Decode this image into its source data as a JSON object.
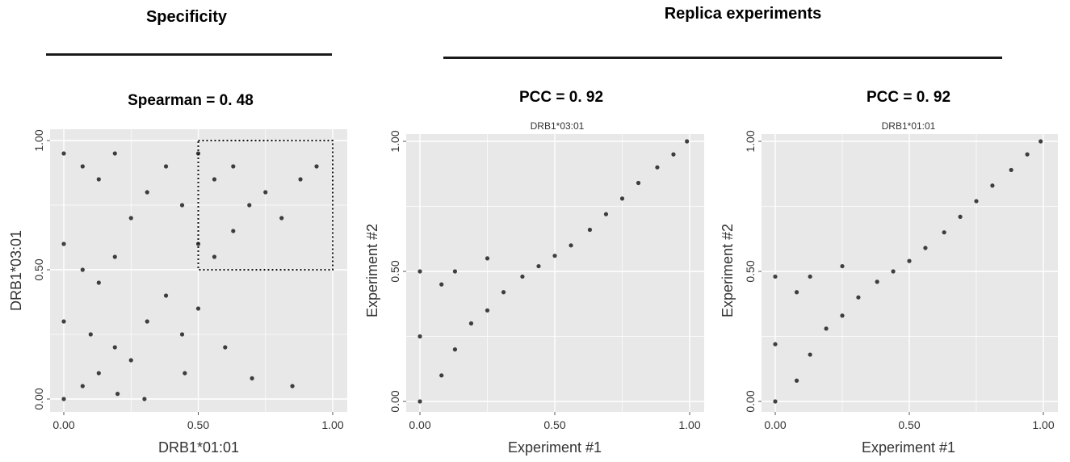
{
  "header": {
    "specificity_title": "Specificity",
    "replica_title": "Replica experiments"
  },
  "chart_data": [
    {
      "type": "scatter",
      "title": "Spearman = 0. 48",
      "subtitle": "",
      "xlabel": "DRB1*01:01",
      "ylabel": "DRB1*03:01",
      "xlim": [
        0,
        1
      ],
      "ylim": [
        0,
        1
      ],
      "xticks": [
        "0.00",
        "0.50",
        "1.00"
      ],
      "yticks": [
        "0.00",
        "0.50",
        "1.00"
      ],
      "grid": true,
      "series": [
        {
          "x": [
            0.0,
            0.0,
            0.0,
            0.0,
            0.07,
            0.07,
            0.07,
            0.13,
            0.13,
            0.13,
            0.19,
            0.19,
            0.19,
            0.25,
            0.25,
            0.31,
            0.31,
            0.38,
            0.38,
            0.44,
            0.44,
            0.5,
            0.5,
            0.56,
            0.56,
            0.63,
            0.63,
            0.69,
            0.75,
            0.81,
            0.88,
            0.94,
            0.2,
            0.45,
            0.6,
            0.7,
            0.85,
            0.1,
            0.3,
            0.5
          ],
          "y": [
            0.0,
            0.3,
            0.6,
            0.95,
            0.05,
            0.5,
            0.9,
            0.1,
            0.45,
            0.85,
            0.2,
            0.55,
            0.95,
            0.15,
            0.7,
            0.3,
            0.8,
            0.4,
            0.9,
            0.25,
            0.75,
            0.6,
            0.95,
            0.55,
            0.85,
            0.65,
            0.9,
            0.75,
            0.8,
            0.7,
            0.85,
            0.9,
            0.02,
            0.1,
            0.2,
            0.08,
            0.05,
            0.25,
            0.0,
            0.35
          ]
        }
      ],
      "highlight_box": {
        "x": [
          0.5,
          1.0
        ],
        "y": [
          0.5,
          1.0
        ]
      }
    },
    {
      "type": "scatter",
      "title": "PCC = 0. 92",
      "subtitle": "DRB1*03:01",
      "xlabel": "Experiment #1",
      "ylabel": "Experiment #2",
      "xlim": [
        0,
        1
      ],
      "ylim": [
        0,
        1
      ],
      "xticks": [
        "0.00",
        "0.50",
        "1.00"
      ],
      "yticks": [
        "0.00",
        "0.50",
        "1.00"
      ],
      "grid": true,
      "series": [
        {
          "x": [
            0.0,
            0.0,
            0.0,
            0.08,
            0.08,
            0.13,
            0.13,
            0.19,
            0.25,
            0.25,
            0.31,
            0.38,
            0.44,
            0.5,
            0.56,
            0.63,
            0.69,
            0.75,
            0.81,
            0.88,
            0.94,
            0.99
          ],
          "y": [
            0.0,
            0.25,
            0.5,
            0.1,
            0.45,
            0.2,
            0.5,
            0.3,
            0.35,
            0.55,
            0.42,
            0.48,
            0.52,
            0.56,
            0.6,
            0.66,
            0.72,
            0.78,
            0.84,
            0.9,
            0.95,
            1.0
          ]
        }
      ]
    },
    {
      "type": "scatter",
      "title": "PCC = 0. 92",
      "subtitle": "DRB1*01:01",
      "xlabel": "Experiment #1",
      "ylabel": "Experiment #2",
      "xlim": [
        0,
        1
      ],
      "ylim": [
        0,
        1
      ],
      "xticks": [
        "0.00",
        "0.50",
        "1.00"
      ],
      "yticks": [
        "0.00",
        "0.50",
        "1.00"
      ],
      "grid": true,
      "series": [
        {
          "x": [
            0.0,
            0.0,
            0.0,
            0.08,
            0.08,
            0.13,
            0.13,
            0.19,
            0.25,
            0.25,
            0.31,
            0.38,
            0.44,
            0.5,
            0.56,
            0.63,
            0.69,
            0.75,
            0.81,
            0.88,
            0.94,
            0.99
          ],
          "y": [
            0.0,
            0.22,
            0.48,
            0.08,
            0.42,
            0.18,
            0.48,
            0.28,
            0.33,
            0.52,
            0.4,
            0.46,
            0.5,
            0.54,
            0.59,
            0.65,
            0.71,
            0.77,
            0.83,
            0.89,
            0.95,
            1.0
          ]
        }
      ]
    }
  ]
}
